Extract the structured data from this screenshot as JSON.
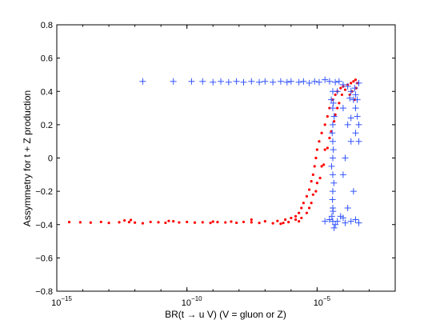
{
  "chart_data": {
    "type": "scatter",
    "title": "",
    "xlabel": "BR(t → u V) (V = gluon or Z)",
    "ylabel": "Assymmetry for t + Z production",
    "x_scale": "log",
    "xlim": [
      1e-15,
      0.01
    ],
    "ylim": [
      -0.8,
      0.8
    ],
    "grid": false,
    "x_ticks": [
      {
        "value": 1e-15,
        "base": "10",
        "exp": "−15"
      },
      {
        "value": 1e-10,
        "base": "10",
        "exp": "−10"
      },
      {
        "value": 1e-05,
        "base": "10",
        "exp": "−5"
      }
    ],
    "y_ticks": [
      {
        "value": 0.8,
        "label": "0.8"
      },
      {
        "value": 0.6,
        "label": "0.6"
      },
      {
        "value": 0.4,
        "label": "0.4"
      },
      {
        "value": 0.2,
        "label": "0.2"
      },
      {
        "value": 0,
        "label": "0"
      },
      {
        "value": -0.2,
        "label": "−0.2"
      },
      {
        "value": -0.4,
        "label": "−0.4"
      },
      {
        "value": -0.6,
        "label": "−0.6"
      },
      {
        "value": -0.8,
        "label": "−0.8"
      }
    ],
    "series": [
      {
        "marker": "dot",
        "color": "#ff0000",
        "points": [
          [
            3e-15,
            -0.385
          ],
          [
            8e-15,
            -0.386
          ],
          [
            2e-14,
            -0.388
          ],
          [
            5e-14,
            -0.384
          ],
          [
            1e-13,
            -0.39
          ],
          [
            2.5e-13,
            -0.386
          ],
          [
            4e-13,
            -0.375
          ],
          [
            6e-13,
            -0.385
          ],
          [
            1e-12,
            -0.388
          ],
          [
            2e-12,
            -0.392
          ],
          [
            4e-12,
            -0.384
          ],
          [
            8e-12,
            -0.386
          ],
          [
            1.5e-11,
            -0.389
          ],
          [
            3e-11,
            -0.38
          ],
          [
            5e-11,
            -0.387
          ],
          [
            1e-10,
            -0.384
          ],
          [
            2e-10,
            -0.388
          ],
          [
            4e-10,
            -0.386
          ],
          [
            8e-10,
            -0.39
          ],
          [
            1.5e-09,
            -0.385
          ],
          [
            3e-09,
            -0.387
          ],
          [
            5e-09,
            -0.382
          ],
          [
            8e-09,
            -0.389
          ],
          [
            1.5e-08,
            -0.384
          ],
          [
            3e-08,
            -0.386
          ],
          [
            6e-08,
            -0.39
          ],
          [
            1e-07,
            -0.38
          ],
          [
            2e-07,
            -0.392
          ],
          [
            3e-07,
            -0.378
          ],
          [
            4e-07,
            -0.395
          ],
          [
            6e-07,
            -0.37
          ],
          [
            8e-07,
            -0.385
          ],
          [
            1e-06,
            -0.36
          ],
          [
            1.5e-06,
            -0.35
          ],
          [
            2e-06,
            -0.33
          ],
          [
            2.5e-06,
            -0.3
          ],
          [
            3e-06,
            -0.27
          ],
          [
            4e-06,
            -0.23
          ],
          [
            5e-06,
            -0.19
          ],
          [
            6e-06,
            -0.14
          ],
          [
            7e-06,
            -0.1
          ],
          [
            8e-06,
            -0.05
          ],
          [
            9e-06,
            0.0
          ],
          [
            1e-05,
            0.05
          ],
          [
            1.2e-05,
            0.1
          ],
          [
            1.5e-05,
            0.15
          ],
          [
            2e-05,
            0.2
          ],
          [
            2.5e-05,
            0.25
          ],
          [
            3e-05,
            0.3
          ],
          [
            4e-05,
            0.35
          ],
          [
            5e-05,
            0.38
          ],
          [
            6e-05,
            0.4
          ],
          [
            8e-05,
            0.42
          ],
          [
            0.0001,
            0.43
          ],
          [
            0.00015,
            0.44
          ],
          [
            0.0002,
            0.45
          ],
          [
            0.00025,
            0.46
          ],
          [
            0.0003,
            0.47
          ],
          [
            0.00035,
            0.45
          ],
          [
            0.00022,
            0.4
          ],
          [
            0.00028,
            0.35
          ],
          [
            0.00032,
            0.42
          ],
          [
            0.00018,
            0.38
          ],
          [
            0.00012,
            0.41
          ],
          [
            4e-06,
            -0.33
          ],
          [
            6e-06,
            -0.27
          ],
          [
            9e-06,
            -0.2
          ],
          [
            1.3e-05,
            -0.12
          ],
          [
            1.8e-05,
            -0.04
          ],
          [
            2.5e-05,
            0.06
          ],
          [
            3.5e-05,
            0.16
          ],
          [
            5e-05,
            0.26
          ],
          [
            7e-05,
            0.33
          ],
          [
            1.5e-06,
            -0.37
          ],
          [
            2.5e-06,
            -0.36
          ],
          [
            5e-06,
            -0.3
          ],
          [
            7e-06,
            -0.22
          ],
          [
            1e-05,
            -0.15
          ],
          [
            1.5e-05,
            -0.05
          ],
          [
            2e-05,
            0.05
          ],
          [
            3e-05,
            0.12
          ],
          [
            4.5e-05,
            0.22
          ],
          [
            6e-05,
            0.3
          ],
          [
            9e-05,
            0.38
          ],
          [
            5e-07,
            -0.39
          ],
          [
            3e-08,
            -0.37
          ],
          [
            1e-09,
            -0.382
          ],
          [
            2e-11,
            -0.378
          ],
          [
            7e-13,
            -0.372
          ],
          [
            2e-06,
            -0.38
          ]
        ]
      },
      {
        "marker": "plus",
        "color": "#3355ff",
        "points": [
          [
            2e-12,
            0.46
          ],
          [
            3e-11,
            0.46
          ],
          [
            1.5e-10,
            0.46
          ],
          [
            4e-10,
            0.46
          ],
          [
            1e-09,
            0.455
          ],
          [
            2e-09,
            0.46
          ],
          [
            4e-09,
            0.455
          ],
          [
            8e-09,
            0.46
          ],
          [
            1.5e-08,
            0.455
          ],
          [
            3e-08,
            0.46
          ],
          [
            6e-08,
            0.455
          ],
          [
            1e-07,
            0.46
          ],
          [
            2e-07,
            0.455
          ],
          [
            4e-07,
            0.46
          ],
          [
            7e-07,
            0.455
          ],
          [
            1e-06,
            0.46
          ],
          [
            2e-06,
            0.455
          ],
          [
            3e-06,
            0.46
          ],
          [
            5e-06,
            0.45
          ],
          [
            8e-06,
            0.46
          ],
          [
            1.2e-05,
            0.455
          ],
          [
            2e-05,
            0.47
          ],
          [
            3e-05,
            0.46
          ],
          [
            5e-05,
            0.455
          ],
          [
            7e-05,
            0.46
          ],
          [
            0.0001,
            0.44
          ],
          [
            0.00015,
            0.43
          ],
          [
            0.0002,
            0.4
          ],
          [
            0.00025,
            0.35
          ],
          [
            0.0003,
            0.3
          ],
          [
            0.00035,
            0.25
          ],
          [
            0.0004,
            0.2
          ],
          [
            4e-05,
            0.4
          ],
          [
            4e-05,
            0.3
          ],
          [
            4e-05,
            0.2
          ],
          [
            4e-05,
            0.1
          ],
          [
            4e-05,
            0.0
          ],
          [
            4e-05,
            -0.1
          ],
          [
            4e-05,
            -0.2
          ],
          [
            4e-05,
            -0.3
          ],
          [
            4e-05,
            -0.38
          ],
          [
            3.5e-05,
            0.35
          ],
          [
            4.5e-05,
            0.25
          ],
          [
            3.8e-05,
            0.15
          ],
          [
            4.2e-05,
            0.05
          ],
          [
            3.6e-05,
            -0.05
          ],
          [
            4.4e-05,
            -0.15
          ],
          [
            3.9e-05,
            -0.25
          ],
          [
            4.1e-05,
            -0.32
          ],
          [
            6e-05,
            -0.38
          ],
          [
            0.0001,
            -0.36
          ],
          [
            0.0002,
            -0.38
          ],
          [
            0.0003,
            -0.37
          ],
          [
            0.0004,
            -0.39
          ],
          [
            5e-05,
            -0.4
          ],
          [
            3e-05,
            -0.37
          ],
          [
            2e-05,
            -0.38
          ],
          [
            0.00012,
            -0.39
          ],
          [
            8e-05,
            -0.35
          ],
          [
            4.5e-05,
            -0.42
          ],
          [
            6e-05,
            0.4
          ],
          [
            0.0001,
            0.3
          ],
          [
            0.00015,
            0.2
          ],
          [
            0.0002,
            0.1
          ],
          [
            0.00012,
            0.0
          ],
          [
            0.0001,
            -0.1
          ],
          [
            0.00025,
            -0.2
          ],
          [
            0.00015,
            -0.3
          ],
          [
            0.0003,
            0.38
          ],
          [
            0.0004,
            0.45
          ],
          [
            0.00035,
            0.35
          ],
          [
            0.00028,
            0.42
          ],
          [
            0.00018,
            0.36
          ],
          [
            0.0004,
            0.1
          ],
          [
            0.0003,
            0.15
          ],
          [
            0.0002,
            0.24
          ],
          [
            4.2e-05,
            0.33
          ],
          [
            3.7e-05,
            -0.35
          ]
        ]
      }
    ]
  }
}
